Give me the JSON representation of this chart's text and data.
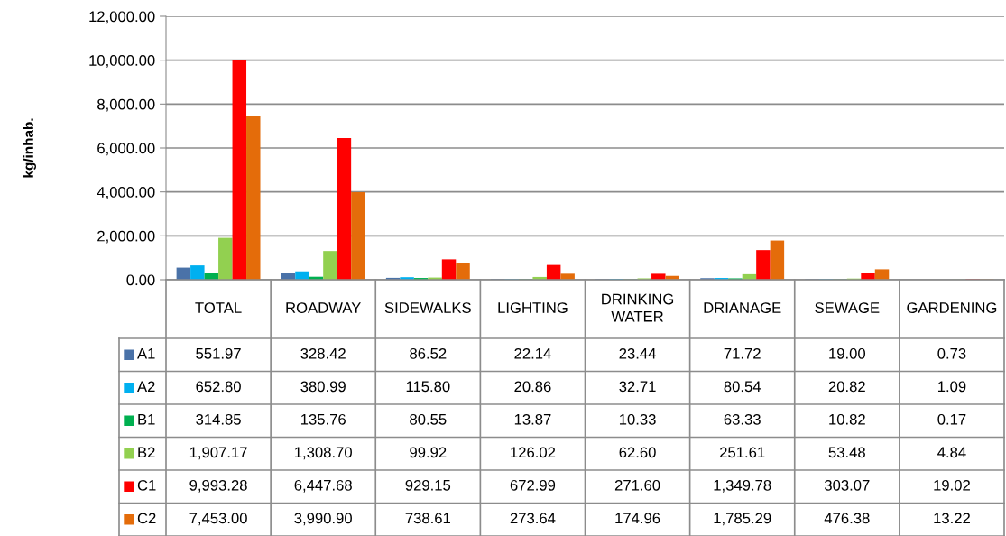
{
  "chart_data": {
    "type": "bar",
    "ylabel": "kg/inhab.",
    "categories": [
      "TOTAL",
      "ROADWAY",
      "SIDEWALKS",
      "LIGHTING",
      "DRINKING WATER",
      "DRIANAGE",
      "SEWAGE",
      "GARDENING"
    ],
    "ylim": [
      0,
      12000
    ],
    "yticks": [
      {
        "value": 0,
        "label": "0.00"
      },
      {
        "value": 2000,
        "label": "2,000.00"
      },
      {
        "value": 4000,
        "label": "4,000.00"
      },
      {
        "value": 6000,
        "label": "6,000.00"
      },
      {
        "value": 8000,
        "label": "8,000.00"
      },
      {
        "value": 10000,
        "label": "10,000.00"
      },
      {
        "value": 12000,
        "label": "12,000.00"
      }
    ],
    "grid": "y",
    "legend": "bottom left",
    "series": [
      {
        "name": "A1",
        "color": "#4a72a8",
        "values": [
          551.97,
          328.42,
          86.52,
          22.14,
          23.44,
          71.72,
          19.0,
          0.73
        ],
        "value_labels": [
          "551.97",
          "328.42",
          "86.52",
          "22.14",
          "23.44",
          "71.72",
          "19.00",
          "0.73"
        ]
      },
      {
        "name": "A2",
        "color": "#00b0f0",
        "values": [
          652.8,
          380.99,
          115.8,
          20.86,
          32.71,
          80.54,
          20.82,
          1.09
        ],
        "value_labels": [
          "652.80",
          "380.99",
          "115.80",
          "20.86",
          "32.71",
          "80.54",
          "20.82",
          "1.09"
        ]
      },
      {
        "name": "B1",
        "color": "#00b050",
        "values": [
          314.85,
          135.76,
          80.55,
          13.87,
          10.33,
          63.33,
          10.82,
          0.17
        ],
        "value_labels": [
          "314.85",
          "135.76",
          "80.55",
          "13.87",
          "10.33",
          "63.33",
          "10.82",
          "0.17"
        ]
      },
      {
        "name": "B2",
        "color": "#92d050",
        "values": [
          1907.17,
          1308.7,
          99.92,
          126.02,
          62.6,
          251.61,
          53.48,
          4.84
        ],
        "value_labels": [
          "1,907.17",
          "1,308.70",
          "99.92",
          "126.02",
          "62.60",
          "251.61",
          "53.48",
          "4.84"
        ]
      },
      {
        "name": "C1",
        "color": "#ff0000",
        "values": [
          9993.28,
          6447.68,
          929.15,
          672.99,
          271.6,
          1349.78,
          303.07,
          19.02
        ],
        "value_labels": [
          "9,993.28",
          "6,447.68",
          "929.15",
          "672.99",
          "271.60",
          "1,349.78",
          "303.07",
          "19.02"
        ]
      },
      {
        "name": "C2",
        "color": "#e46c0a",
        "values": [
          7453.0,
          3990.9,
          738.61,
          273.64,
          174.96,
          1785.29,
          476.38,
          13.22
        ],
        "value_labels": [
          "7,453.00",
          "3,990.90",
          "738.61",
          "273.64",
          "174.96",
          "1,785.29",
          "476.38",
          "13.22"
        ]
      }
    ]
  }
}
